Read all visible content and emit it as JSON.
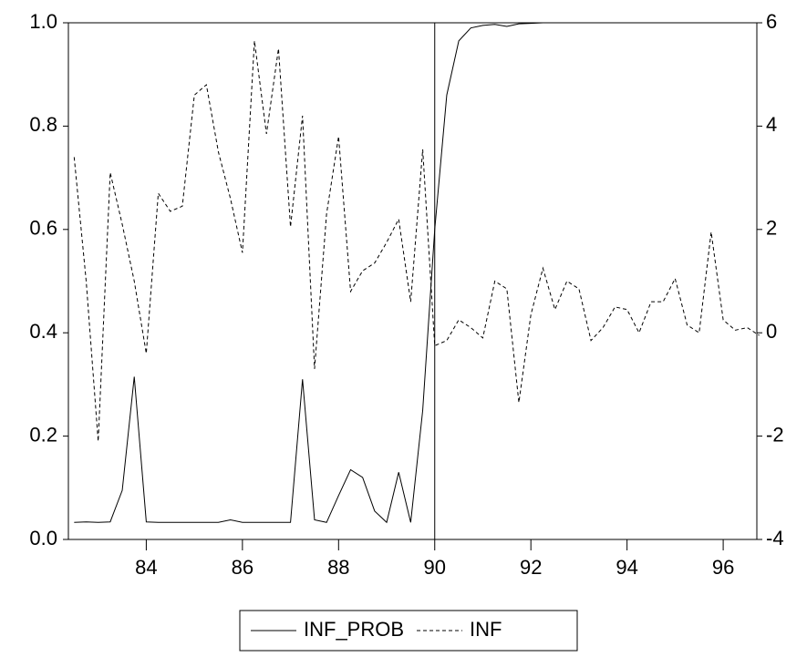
{
  "chart_data": {
    "type": "line",
    "x": [
      82.5,
      82.75,
      83,
      83.25,
      83.5,
      83.75,
      84,
      84.25,
      84.5,
      84.75,
      85,
      85.25,
      85.5,
      85.75,
      86,
      86.25,
      86.5,
      86.75,
      87,
      87.25,
      87.5,
      87.75,
      88,
      88.25,
      88.5,
      88.75,
      89,
      89.25,
      89.5,
      89.75,
      90,
      90.25,
      90.5,
      90.75,
      91,
      91.25,
      91.5,
      91.75,
      92,
      92.25,
      92.5,
      92.75,
      93,
      93.25,
      93.5,
      93.75,
      94,
      94.25,
      94.5,
      94.75,
      95,
      95.25,
      95.5,
      95.75,
      96,
      96.25,
      96.5,
      96.75
    ],
    "series": [
      {
        "name": "INF_PROB",
        "color": "#000000",
        "dash": "solid",
        "axis": "y",
        "values": [
          0.033,
          0.034,
          0.033,
          0.034,
          0.095,
          0.315,
          0.034,
          0.033,
          0.033,
          0.033,
          0.033,
          0.033,
          0.033,
          0.038,
          0.033,
          0.033,
          0.033,
          0.033,
          0.033,
          0.31,
          0.038,
          0.033,
          0.085,
          0.135,
          0.12,
          0.055,
          0.033,
          0.13,
          0.033,
          0.25,
          0.6,
          0.86,
          0.965,
          0.99,
          0.995,
          0.997,
          0.993,
          0.998,
          0.999,
          1.0,
          1.0,
          1.0,
          1.0,
          1.0,
          1.0,
          1.0,
          1.0,
          1.0,
          1.0,
          1.0,
          1.0,
          1.0,
          1.0,
          1.0,
          1.0,
          1.0,
          null,
          null
        ]
      },
      {
        "name": "INF",
        "color": "#000000",
        "dash": "dashed",
        "axis": "y2",
        "values": [
          3.4,
          1.0,
          -2.1,
          3.1,
          2.1,
          1.0,
          -0.4,
          2.7,
          2.35,
          2.45,
          4.6,
          4.8,
          3.5,
          2.6,
          1.55,
          5.65,
          3.85,
          5.5,
          2.05,
          4.2,
          -0.7,
          2.3,
          3.8,
          0.8,
          1.2,
          1.35,
          1.75,
          2.2,
          0.6,
          3.55,
          -0.25,
          -0.15,
          0.25,
          0.1,
          -0.1,
          1.0,
          0.85,
          -1.35,
          0.35,
          1.25,
          0.45,
          1.0,
          0.85,
          -0.15,
          0.1,
          0.5,
          0.45,
          0.0,
          0.6,
          0.6,
          1.05,
          0.15,
          0.0,
          1.95,
          0.25,
          0.05,
          0.1,
          -0.05
        ]
      }
    ],
    "xlim": [
      82.38,
      96.7
    ],
    "xticks": [
      84,
      86,
      88,
      90,
      92,
      94,
      96
    ],
    "ylim": [
      0,
      1
    ],
    "yticks": [
      {
        "value": 0,
        "label": "0.0"
      },
      {
        "value": 0.2,
        "label": "0.2"
      },
      {
        "value": 0.4,
        "label": "0.4"
      },
      {
        "value": 0.6,
        "label": "0.6"
      },
      {
        "value": 0.8,
        "label": "0.8"
      },
      {
        "value": 1,
        "label": "1.0"
      }
    ],
    "y2lim": [
      -4,
      6
    ],
    "y2ticks": [
      -4,
      -2,
      0,
      2,
      4,
      6
    ],
    "vline": 90,
    "legend": "bottom"
  }
}
